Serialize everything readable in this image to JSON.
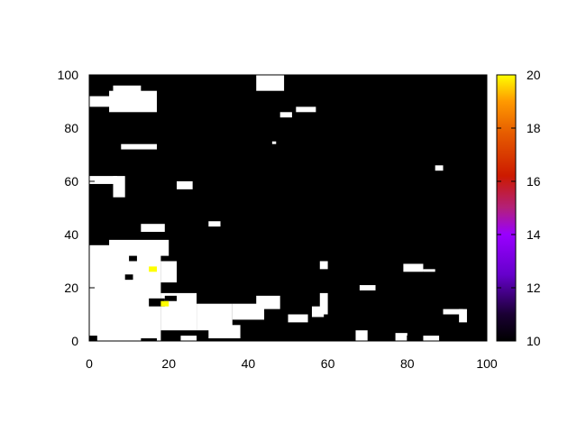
{
  "chart_data": {
    "type": "heatmap",
    "title": "",
    "xlabel": "",
    "ylabel": "",
    "xlim": [
      0,
      100
    ],
    "ylim": [
      0,
      100
    ],
    "x_ticks": [
      "0",
      "20",
      "40",
      "60",
      "80",
      "100"
    ],
    "y_ticks": [
      "0",
      "20",
      "40",
      "60",
      "80",
      "100"
    ],
    "background_value": "black",
    "white_regions": [
      {
        "x0": 0,
        "y0": 0,
        "x1": 18,
        "y1": 36
      },
      {
        "x0": 5,
        "y0": 32,
        "x1": 20,
        "y1": 38
      },
      {
        "x0": 18,
        "y0": 22,
        "x1": 22,
        "y1": 30
      },
      {
        "x0": 18,
        "y0": 4,
        "x1": 27,
        "y1": 18
      },
      {
        "x0": 27,
        "y0": 4,
        "x1": 36,
        "y1": 14
      },
      {
        "x0": 30,
        "y0": 1,
        "x1": 38,
        "y1": 6
      },
      {
        "x0": 36,
        "y0": 8,
        "x1": 44,
        "y1": 14
      },
      {
        "x0": 42,
        "y0": 12,
        "x1": 48,
        "y1": 17
      },
      {
        "x0": 58,
        "y0": 10,
        "x1": 60,
        "y1": 18
      },
      {
        "x0": 56,
        "y0": 9,
        "x1": 59,
        "y1": 13
      },
      {
        "x0": 50,
        "y0": 7,
        "x1": 55,
        "y1": 10
      },
      {
        "x0": 0,
        "y0": 88,
        "x1": 6,
        "y1": 92
      },
      {
        "x0": 5,
        "y0": 86,
        "x1": 17,
        "y1": 94
      },
      {
        "x0": 6,
        "y0": 92,
        "x1": 13,
        "y1": 96
      },
      {
        "x0": 42,
        "y0": 94,
        "x1": 49,
        "y1": 100
      },
      {
        "x0": 6,
        "y0": 54,
        "x1": 9,
        "y1": 62
      },
      {
        "x0": 0,
        "y0": 59,
        "x1": 7,
        "y1": 62
      },
      {
        "x0": 8,
        "y0": 72,
        "x1": 17,
        "y1": 74
      },
      {
        "x0": 13,
        "y0": 41,
        "x1": 19,
        "y1": 44
      },
      {
        "x0": 30,
        "y0": 43,
        "x1": 33,
        "y1": 45
      },
      {
        "x0": 22,
        "y0": 57,
        "x1": 26,
        "y1": 60
      },
      {
        "x0": 58,
        "y0": 27,
        "x1": 60,
        "y1": 30
      },
      {
        "x0": 84,
        "y0": 26,
        "x1": 87,
        "y1": 27
      },
      {
        "x0": 79,
        "y0": 26,
        "x1": 84,
        "y1": 29
      },
      {
        "x0": 93,
        "y0": 7,
        "x1": 95,
        "y1": 12
      },
      {
        "x0": 89,
        "y0": 10,
        "x1": 94,
        "y1": 12
      },
      {
        "x0": 68,
        "y0": 19,
        "x1": 72,
        "y1": 21
      },
      {
        "x0": 67,
        "y0": 0,
        "x1": 70,
        "y1": 4
      },
      {
        "x0": 77,
        "y0": 0,
        "x1": 80,
        "y1": 3
      },
      {
        "x0": 84,
        "y0": 0,
        "x1": 88,
        "y1": 2
      },
      {
        "x0": 0,
        "y0": 0,
        "x1": 3,
        "y1": 4
      },
      {
        "x0": 23,
        "y0": 0,
        "x1": 27,
        "y1": 2
      },
      {
        "x0": 52,
        "y0": 86,
        "x1": 57,
        "y1": 88
      },
      {
        "x0": 48,
        "y0": 84,
        "x1": 51,
        "y1": 86
      },
      {
        "x0": 87,
        "y0": 64,
        "x1": 89,
        "y1": 66
      },
      {
        "x0": 46,
        "y0": 74,
        "x1": 47,
        "y1": 75
      }
    ],
    "black_cells_in_white": [
      {
        "x": 10,
        "y": 30,
        "w": 2,
        "h": 2
      },
      {
        "x": 9,
        "y": 23,
        "w": 2,
        "h": 2
      },
      {
        "x": 20,
        "y": 19,
        "w": 2,
        "h": 2
      },
      {
        "x": 15,
        "y": 13,
        "w": 4,
        "h": 3
      },
      {
        "x": 19,
        "y": 15,
        "w": 3,
        "h": 2
      },
      {
        "x": 0,
        "y": 0,
        "w": 2,
        "h": 2
      },
      {
        "x": 13,
        "y": 0,
        "w": 4,
        "h": 1
      }
    ],
    "highlight_cells": [
      {
        "x": 15,
        "y": 26,
        "w": 2,
        "h": 2,
        "value": 20
      },
      {
        "x": 18,
        "y": 13,
        "w": 2,
        "h": 2,
        "value": 20
      }
    ],
    "colorbar": {
      "min": 10,
      "max": 20,
      "ticks": [
        "10",
        "12",
        "14",
        "16",
        "18",
        "20"
      ],
      "stops": [
        {
          "offset": 0,
          "color": "#000000"
        },
        {
          "offset": 0.1,
          "color": "#1a0033"
        },
        {
          "offset": 0.25,
          "color": "#6600cc"
        },
        {
          "offset": 0.4,
          "color": "#9900ff"
        },
        {
          "offset": 0.5,
          "color": "#b3207a"
        },
        {
          "offset": 0.62,
          "color": "#cc1a00"
        },
        {
          "offset": 0.78,
          "color": "#e65c00"
        },
        {
          "offset": 0.9,
          "color": "#ff9900"
        },
        {
          "offset": 1,
          "color": "#ffff00"
        }
      ]
    }
  }
}
